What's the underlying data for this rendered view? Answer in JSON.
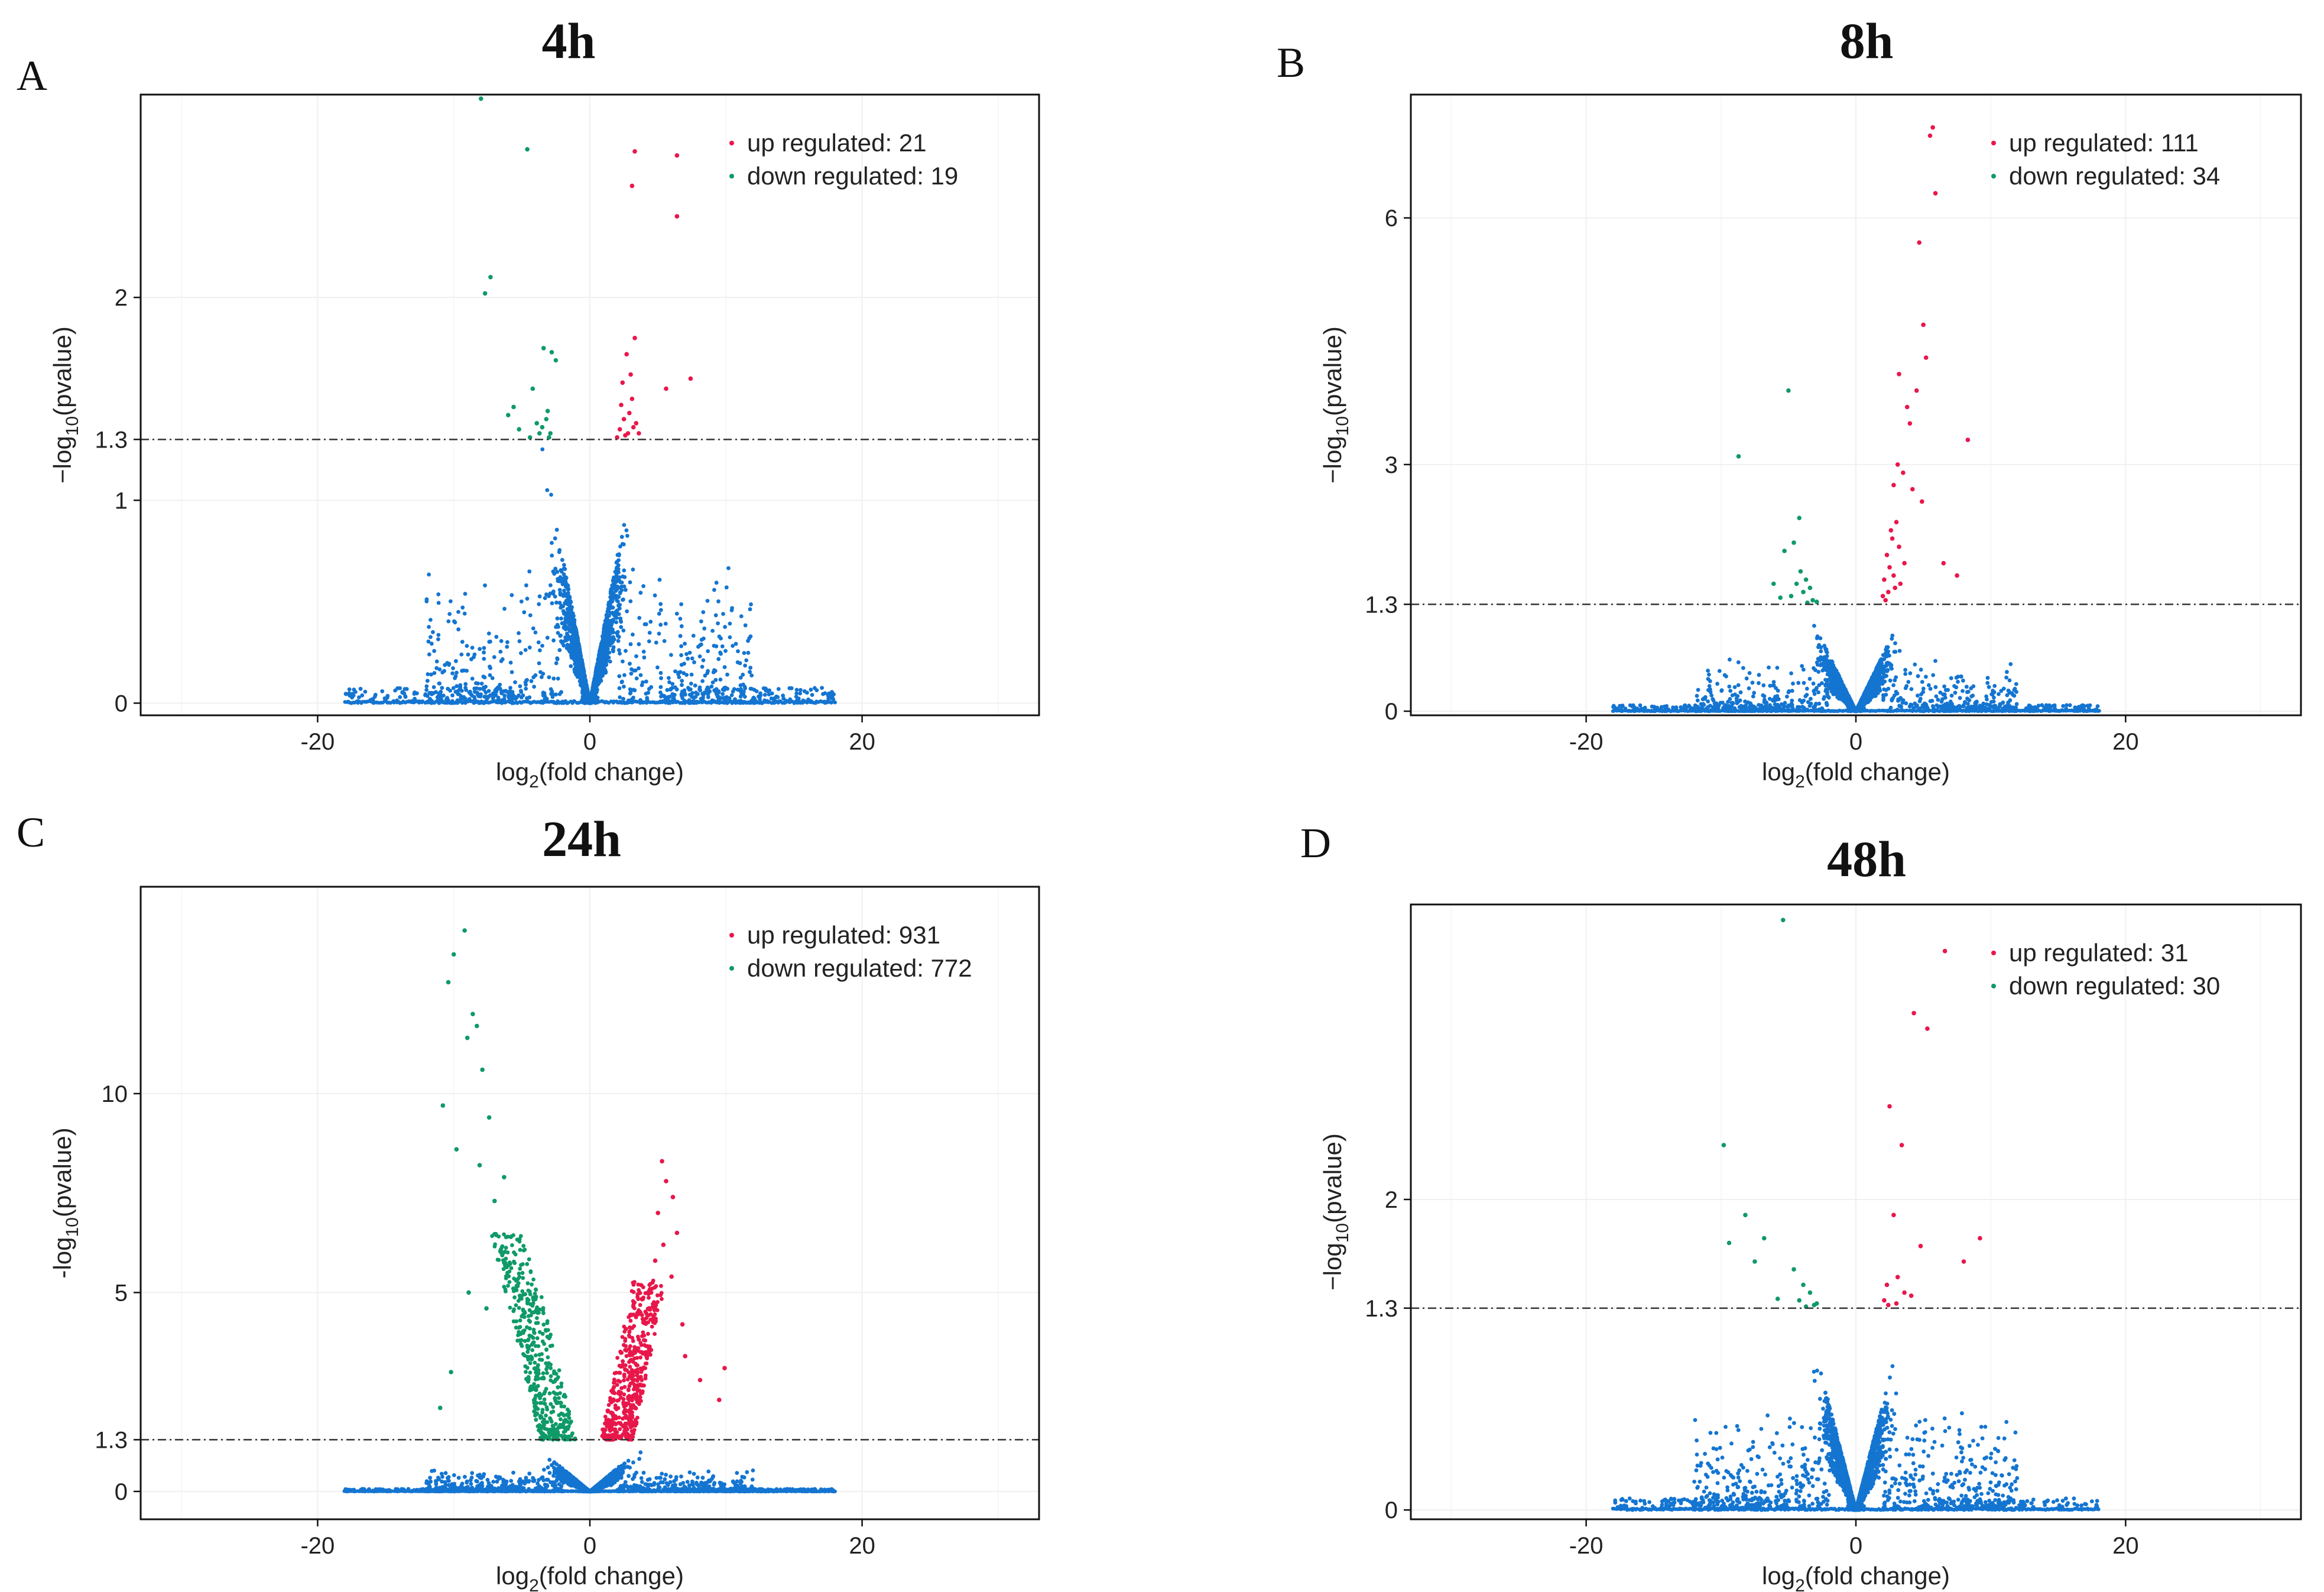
{
  "colors": {
    "up": "#e8174a",
    "down": "#0f9a68",
    "ns": "#1475d1"
  },
  "chart_data": [
    {
      "type": "scatter",
      "panel": "A",
      "title": "4h",
      "xlabel_main": "log",
      "xlabel_sub": "2",
      "xlabel_rest": "(fold change)",
      "ylabel_pre": "−log",
      "ylabel_sub": "10",
      "ylabel_rest": "(pvalue)",
      "xlim": [
        -33,
        33
      ],
      "ylim": [
        -0.06,
        3.0
      ],
      "xticks": [
        {
          "v": -20,
          "label": "-20"
        },
        {
          "v": 0,
          "label": "0"
        },
        {
          "v": 20,
          "label": "20"
        }
      ],
      "yticks": [
        {
          "v": 0,
          "label": "0"
        },
        {
          "v": 1,
          "label": "1"
        },
        {
          "v": 1.3,
          "label": "1.3"
        },
        {
          "v": 2,
          "label": "2"
        }
      ],
      "threshold": 1.3,
      "seed": 11,
      "ns_count": 2600,
      "spread": 1.0,
      "legend": [
        {
          "series": "up",
          "label": "up regulated: 21"
        },
        {
          "series": "down",
          "label": "down regulated: 19"
        }
      ],
      "up_points": [
        [
          2.2,
          1.35
        ],
        [
          2.6,
          1.32
        ],
        [
          2.9,
          1.43
        ],
        [
          3.1,
          1.5
        ],
        [
          3.4,
          1.38
        ],
        [
          2.4,
          1.58
        ],
        [
          3.0,
          1.62
        ],
        [
          2.7,
          1.72
        ],
        [
          3.3,
          1.8
        ],
        [
          7.4,
          1.6
        ],
        [
          5.6,
          1.55
        ],
        [
          3.3,
          2.72
        ],
        [
          3.1,
          2.55
        ],
        [
          6.4,
          2.7
        ],
        [
          6.4,
          2.4
        ],
        [
          2.5,
          1.4
        ],
        [
          2.0,
          1.31
        ],
        [
          3.6,
          1.33
        ],
        [
          2.3,
          1.47
        ],
        [
          3.2,
          1.36
        ],
        [
          2.8,
          1.33
        ]
      ],
      "down_points": [
        [
          -3.5,
          1.36
        ],
        [
          -3.7,
          1.33
        ],
        [
          -3.1,
          1.44
        ],
        [
          -4.2,
          1.55
        ],
        [
          -2.8,
          1.73
        ],
        [
          -2.5,
          1.69
        ],
        [
          -3.4,
          1.75
        ],
        [
          -5.2,
          1.35
        ],
        [
          -6.0,
          1.42
        ],
        [
          -7.3,
          2.1
        ],
        [
          -7.7,
          2.02
        ],
        [
          -4.6,
          2.73
        ],
        [
          -8.0,
          2.98
        ],
        [
          -3.9,
          1.38
        ],
        [
          -4.4,
          1.31
        ],
        [
          -2.9,
          1.33
        ],
        [
          -3.2,
          1.4
        ],
        [
          -5.6,
          1.46
        ],
        [
          -3.0,
          1.31
        ]
      ]
    },
    {
      "type": "scatter",
      "panel": "B",
      "title": "8h",
      "xlabel_main": "log",
      "xlabel_sub": "2",
      "xlabel_rest": "(fold change)",
      "ylabel_pre": "−log",
      "ylabel_sub": "10",
      "ylabel_rest": "(pvalue)",
      "xlim": [
        -33,
        33
      ],
      "ylim": [
        -0.05,
        7.5
      ],
      "xticks": [
        {
          "v": -20,
          "label": "-20"
        },
        {
          "v": 0,
          "label": "0"
        },
        {
          "v": 20,
          "label": "20"
        }
      ],
      "yticks": [
        {
          "v": 0,
          "label": "0"
        },
        {
          "v": 1.3,
          "label": "1.3"
        },
        {
          "v": 3,
          "label": "3"
        },
        {
          "v": 6,
          "label": "6"
        }
      ],
      "threshold": 1.3,
      "seed": 23,
      "ns_count": 2700,
      "spread": 0.95,
      "legend": [
        {
          "series": "up",
          "label": "up regulated: 111"
        },
        {
          "series": "down",
          "label": "down regulated: 34"
        }
      ],
      "up_points": [
        [
          5.7,
          7.1
        ],
        [
          5.5,
          7.0
        ],
        [
          5.9,
          6.3
        ],
        [
          4.7,
          5.7
        ],
        [
          5.0,
          4.7
        ],
        [
          5.2,
          4.3
        ],
        [
          3.2,
          4.1
        ],
        [
          3.8,
          3.7
        ],
        [
          4.0,
          3.5
        ],
        [
          4.5,
          3.9
        ],
        [
          8.3,
          3.3
        ],
        [
          3.1,
          3.0
        ],
        [
          3.5,
          2.9
        ],
        [
          2.8,
          2.75
        ],
        [
          4.2,
          2.7
        ],
        [
          4.9,
          2.55
        ],
        [
          2.6,
          2.2
        ],
        [
          2.7,
          2.1
        ],
        [
          3.0,
          2.3
        ],
        [
          3.2,
          2.0
        ],
        [
          2.3,
          1.9
        ],
        [
          2.5,
          1.75
        ],
        [
          2.1,
          1.6
        ],
        [
          2.9,
          1.5
        ],
        [
          2.4,
          1.45
        ],
        [
          2.0,
          1.4
        ],
        [
          2.2,
          1.35
        ],
        [
          3.3,
          1.55
        ],
        [
          3.6,
          1.8
        ],
        [
          2.8,
          1.65
        ],
        [
          7.5,
          1.65
        ],
        [
          6.5,
          1.8
        ]
      ],
      "down_points": [
        [
          -5.0,
          3.9
        ],
        [
          -8.7,
          3.1
        ],
        [
          -4.2,
          2.35
        ],
        [
          -4.6,
          2.05
        ],
        [
          -5.3,
          1.95
        ],
        [
          -3.7,
          1.6
        ],
        [
          -4.1,
          1.7
        ],
        [
          -3.4,
          1.5
        ],
        [
          -3.9,
          1.45
        ],
        [
          -4.8,
          1.4
        ],
        [
          -3.2,
          1.35
        ],
        [
          -5.6,
          1.38
        ],
        [
          -4.4,
          1.55
        ],
        [
          -3.6,
          1.32
        ],
        [
          -6.1,
          1.55
        ],
        [
          -2.9,
          1.33
        ]
      ]
    },
    {
      "type": "scatter",
      "panel": "C",
      "title": "24h",
      "xlabel_main": "log",
      "xlabel_sub": "2",
      "xlabel_rest": "(fold change)",
      "ylabel_pre": "-log",
      "ylabel_sub": "10",
      "ylabel_rest": "(pvalue)",
      "xlim": [
        -33,
        33
      ],
      "ylim": [
        -0.7,
        15.2
      ],
      "xticks": [
        {
          "v": -20,
          "label": "-20"
        },
        {
          "v": 0,
          "label": "0"
        },
        {
          "v": 20,
          "label": "20"
        }
      ],
      "yticks": [
        {
          "v": 0,
          "label": "0"
        },
        {
          "v": 1.3,
          "label": "1.3"
        },
        {
          "v": 5,
          "label": "5"
        },
        {
          "v": 10,
          "label": "10"
        }
      ],
      "threshold": 1.3,
      "seed": 37,
      "ns_count": 2800,
      "spread": 0.8,
      "bulk_up": 520,
      "bulk_down": 460,
      "legend": [
        {
          "series": "up",
          "label": "up regulated: 931"
        },
        {
          "series": "down",
          "label": "down regulated: 772"
        }
      ],
      "up_points": [
        [
          5.3,
          8.3
        ],
        [
          5.6,
          7.8
        ],
        [
          6.1,
          7.4
        ],
        [
          5.0,
          7.0
        ],
        [
          6.4,
          6.5
        ],
        [
          5.4,
          6.2
        ],
        [
          4.8,
          5.8
        ],
        [
          6.0,
          5.4
        ],
        [
          4.5,
          5.0
        ],
        [
          9.9,
          3.1
        ],
        [
          9.5,
          2.3
        ],
        [
          8.1,
          2.8
        ],
        [
          7.0,
          3.4
        ],
        [
          6.8,
          4.2
        ]
      ],
      "down_points": [
        [
          -9.2,
          14.1
        ],
        [
          -10.0,
          13.5
        ],
        [
          -10.4,
          12.8
        ],
        [
          -8.6,
          12.0
        ],
        [
          -8.3,
          11.7
        ],
        [
          -9.0,
          11.4
        ],
        [
          -7.9,
          10.6
        ],
        [
          -10.8,
          9.7
        ],
        [
          -7.4,
          9.4
        ],
        [
          -9.8,
          8.6
        ],
        [
          -8.1,
          8.2
        ],
        [
          -6.3,
          7.9
        ],
        [
          -7.0,
          7.3
        ],
        [
          -5.8,
          6.4
        ],
        [
          -6.5,
          6.0
        ],
        [
          -11.0,
          2.1
        ],
        [
          -10.2,
          3.0
        ],
        [
          -8.9,
          5.0
        ],
        [
          -7.6,
          4.6
        ]
      ]
    },
    {
      "type": "scatter",
      "panel": "D",
      "title": "48h",
      "xlabel_main": "log",
      "xlabel_sub": "2",
      "xlabel_rest": "(fold change)",
      "ylabel_pre": "−log",
      "ylabel_sub": "10",
      "ylabel_rest": "(pvalue)",
      "xlim": [
        -33,
        33
      ],
      "ylim": [
        -0.06,
        3.9
      ],
      "xticks": [
        {
          "v": -20,
          "label": "-20"
        },
        {
          "v": 0,
          "label": "0"
        },
        {
          "v": 20,
          "label": "20"
        }
      ],
      "yticks": [
        {
          "v": 0,
          "label": "0"
        },
        {
          "v": 1.3,
          "label": "1.3"
        },
        {
          "v": 2,
          "label": "2"
        }
      ],
      "threshold": 1.3,
      "seed": 53,
      "ns_count": 2700,
      "spread": 0.95,
      "legend": [
        {
          "series": "up",
          "label": "up regulated: 31"
        },
        {
          "series": "down",
          "label": "down regulated: 30"
        }
      ],
      "up_points": [
        [
          6.6,
          3.6
        ],
        [
          4.3,
          3.2
        ],
        [
          5.3,
          3.1
        ],
        [
          2.5,
          2.6
        ],
        [
          3.4,
          2.35
        ],
        [
          2.8,
          1.9
        ],
        [
          4.8,
          1.7
        ],
        [
          9.2,
          1.75
        ],
        [
          8.0,
          1.6
        ],
        [
          2.3,
          1.45
        ],
        [
          3.1,
          1.5
        ],
        [
          2.1,
          1.35
        ],
        [
          3.6,
          1.4
        ],
        [
          2.4,
          1.32
        ],
        [
          4.1,
          1.38
        ],
        [
          3.0,
          1.33
        ]
      ],
      "down_points": [
        [
          -5.4,
          3.8
        ],
        [
          -9.8,
          2.35
        ],
        [
          -8.2,
          1.9
        ],
        [
          -9.4,
          1.72
        ],
        [
          -6.8,
          1.75
        ],
        [
          -7.5,
          1.6
        ],
        [
          -4.6,
          1.55
        ],
        [
          -3.9,
          1.45
        ],
        [
          -4.2,
          1.35
        ],
        [
          -3.4,
          1.4
        ],
        [
          -3.1,
          1.32
        ],
        [
          -5.8,
          1.36
        ],
        [
          -2.9,
          1.33
        ],
        [
          -3.7,
          1.31
        ]
      ]
    }
  ]
}
